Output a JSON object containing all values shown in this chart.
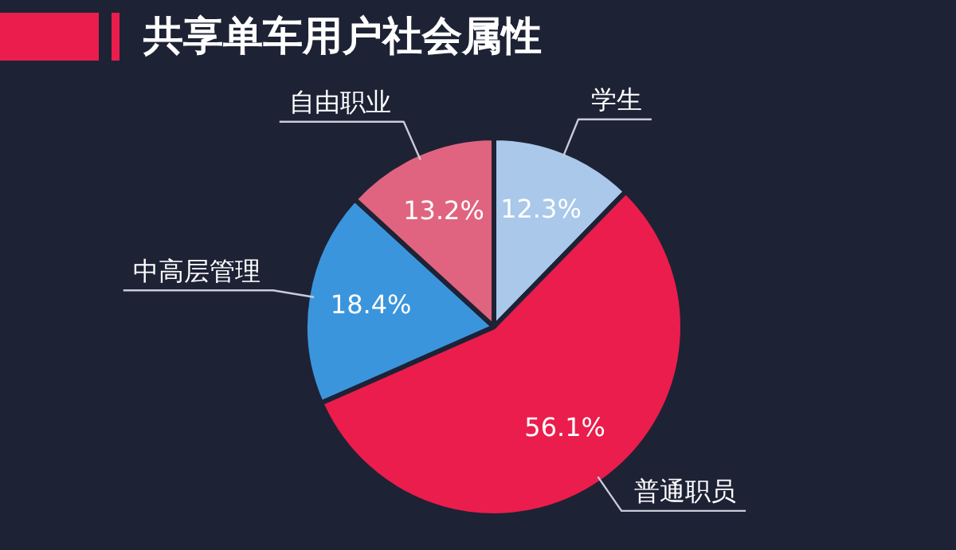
{
  "chart_data": {
    "type": "pie",
    "title": "共享单车用户社会属性",
    "categories": [
      "学生",
      "普通职员",
      "中高层管理",
      "自由职业"
    ],
    "values": [
      12.3,
      56.1,
      18.4,
      13.2
    ],
    "value_labels": [
      "12.3%",
      "56.1%",
      "18.4%",
      "13.2%"
    ],
    "colors": [
      "#a9c8ea",
      "#ea1d4c",
      "#3b95dc",
      "#e0647f"
    ]
  }
}
